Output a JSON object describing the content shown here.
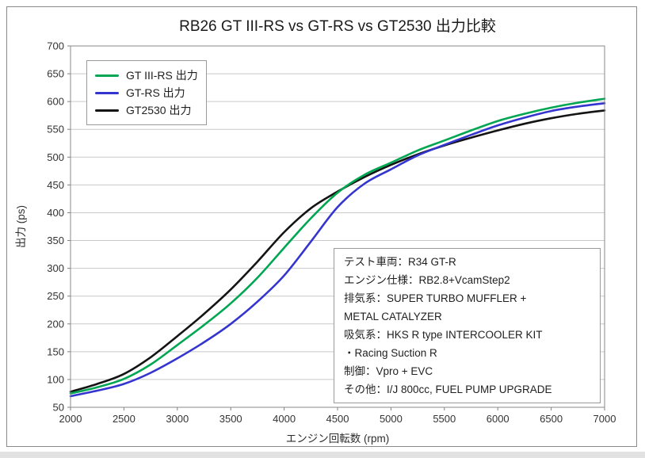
{
  "chart_data": {
    "type": "line",
    "title": "RB26 GT III-RS vs GT-RS vs GT2530 出力比較",
    "xlabel": "エンジン回転数 (rpm)",
    "ylabel": "出力 (ps)",
    "xlim": [
      2000,
      7000
    ],
    "ylim": [
      50,
      700
    ],
    "xticks": [
      2000,
      2500,
      3000,
      3500,
      4000,
      4500,
      5000,
      5500,
      6000,
      6500,
      7000
    ],
    "yticks": [
      50,
      100,
      150,
      200,
      250,
      300,
      350,
      400,
      450,
      500,
      550,
      600,
      650,
      700
    ],
    "grid": "horizontal",
    "legend_position": "top-left",
    "x": [
      2000,
      2250,
      2500,
      2750,
      3000,
      3250,
      3500,
      3750,
      4000,
      4250,
      4500,
      4750,
      5000,
      5250,
      5500,
      5750,
      6000,
      6250,
      6500,
      6750,
      7000
    ],
    "series": [
      {
        "name": "GT III-RS 出力",
        "color": "#00a651",
        "values": [
          75,
          86,
          101,
          127,
          162,
          198,
          237,
          283,
          337,
          390,
          436,
          468,
          490,
          512,
          530,
          548,
          565,
          578,
          589,
          598,
          605
        ]
      },
      {
        "name": "GT-RS 出力",
        "color": "#3434cf",
        "values": [
          70,
          80,
          92,
          112,
          138,
          167,
          200,
          240,
          287,
          348,
          410,
          452,
          478,
          503,
          522,
          540,
          557,
          571,
          583,
          591,
          597
        ]
      },
      {
        "name": "GT2530 出力",
        "color": "#141414",
        "values": [
          78,
          92,
          110,
          140,
          178,
          218,
          262,
          312,
          365,
          408,
          438,
          464,
          486,
          505,
          521,
          535,
          548,
          560,
          570,
          578,
          584
        ]
      }
    ],
    "annotation": {
      "lines": [
        "テスト車両：R34 GT-R",
        "エンジン仕様：RB2.8+VcamStep2",
        "排気系：SUPER TURBO MUFFLER +",
        "METAL CATALYZER",
        "吸気系：HKS R type INTERCOOLER KIT",
        "・Racing Suction R",
        "制御：Vpro + EVC",
        "その他：I/J 800cc, FUEL PUMP UPGRADE"
      ]
    }
  }
}
